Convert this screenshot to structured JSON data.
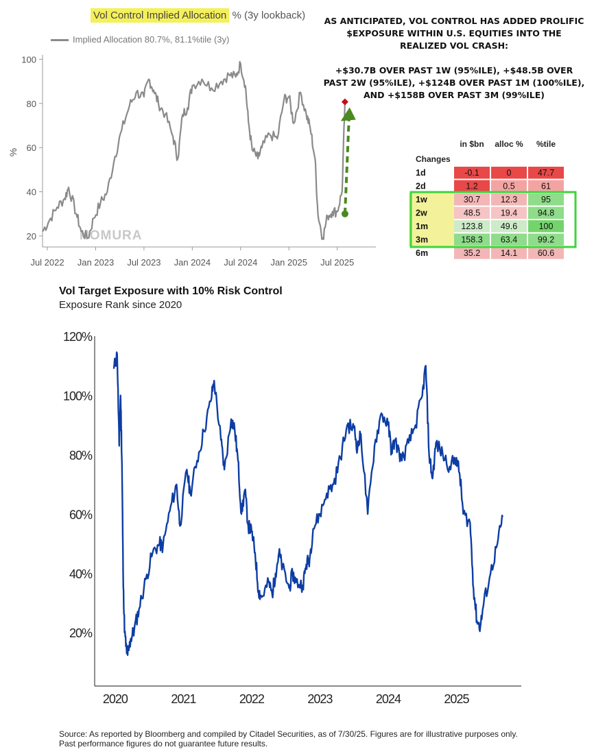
{
  "top": {
    "title_highlight": "Vol Control Implied Allocation",
    "title_rest": " % (3y lookback)",
    "legend": "Implied Allocation 80.7%, 81.1%tile (3y)",
    "watermark": "NOMURA",
    "annotation_line1": "AS ANTICIPATED, VOL CONTROL HAS ADDED PROLIFIC $EXPOSURE WITHIN U.S. EQUITIES INTO THE REALIZED VOL CRASH:",
    "annotation_line2": "+$30.7B OVER PAST 1W (95%ILE), +$48.5B OVER PAST 2W (95%ILE), +$124B OVER PAST 1M (100%ILE), AND +$158B OVER PAST 3M (99%ILE)"
  },
  "table": {
    "corner": "Changes",
    "headers": [
      "in $bn",
      "alloc %",
      "%tile"
    ],
    "rows": [
      {
        "label": "1d",
        "cells": [
          "-0.1",
          "0",
          "47.7"
        ],
        "colors": [
          "#e84848",
          "#e84848",
          "#e84848"
        ],
        "highlight": false
      },
      {
        "label": "2d",
        "cells": [
          "1.2",
          "0.5",
          "61"
        ],
        "colors": [
          "#e84848",
          "#f4a3a3",
          "#f4a3a3"
        ],
        "highlight": false
      },
      {
        "label": "1w",
        "cells": [
          "30.7",
          "12.3",
          "95"
        ],
        "colors": [
          "#f3b6b6",
          "#f3b6b6",
          "#8fdc8a"
        ],
        "highlight": true
      },
      {
        "label": "2w",
        "cells": [
          "48.5",
          "19.4",
          "94.8"
        ],
        "colors": [
          "#f6c4c4",
          "#f6c4c4",
          "#8fdc8a"
        ],
        "highlight": true
      },
      {
        "label": "1m",
        "cells": [
          "123.8",
          "49.6",
          "100"
        ],
        "colors": [
          "#cdebc8",
          "#cdebc8",
          "#74d46c"
        ],
        "highlight": true
      },
      {
        "label": "3m",
        "cells": [
          "158.3",
          "63.4",
          "99.2"
        ],
        "colors": [
          "#8fdc8a",
          "#8fdc8a",
          "#8fdc8a"
        ],
        "highlight": true
      },
      {
        "label": "6m",
        "cells": [
          "35.2",
          "14.1",
          "60.6"
        ],
        "colors": [
          "#f3b6b6",
          "#f3b6b6",
          "#f3b6b6"
        ],
        "highlight": false
      }
    ]
  },
  "bottom": {
    "title": "Vol Target Exposure with 10% Risk Control",
    "subtitle": "Exposure Rank since 2020",
    "source": "Source: As reported by Bloomberg and compiled by Citadel Securities, as of 7/30/25. Figures are for illustrative purposes only. Past performance figures do not guarantee future results."
  },
  "colors": {
    "top_line": "#8a8a8a",
    "bottom_line": "#0d3da3",
    "marker": "#c0101a",
    "arrow": "#4a8a20",
    "highlight_box": "#3fd43a",
    "title_highlight": "#f4f05a"
  },
  "chart_data": [
    {
      "type": "line",
      "title": "Vol Control Implied Allocation % (3y lookback)",
      "xlabel": "",
      "ylabel": "%",
      "x_ticks": [
        "Jul 2022",
        "Jan 2023",
        "Jul 2023",
        "Jan 2024",
        "Jul 2024",
        "Jan 2025",
        "Jul 2025"
      ],
      "y_ticks": [
        20,
        40,
        60,
        80,
        100
      ],
      "xlim": [
        2022.45,
        2025.9
      ],
      "ylim": [
        15,
        102
      ],
      "series": [
        {
          "name": "Implied Allocation 80.7%, 81.1%tile (3y)",
          "x": [
            2022.45,
            2022.52,
            2022.6,
            2022.68,
            2022.72,
            2022.8,
            2022.85,
            2022.92,
            2022.98,
            2023.05,
            2023.12,
            2023.2,
            2023.27,
            2023.35,
            2023.42,
            2023.5,
            2023.55,
            2023.6,
            2023.65,
            2023.72,
            2023.8,
            2023.85,
            2023.9,
            2023.95,
            2024.0,
            2024.1,
            2024.2,
            2024.3,
            2024.38,
            2024.45,
            2024.5,
            2024.55,
            2024.58,
            2024.62,
            2024.68,
            2024.72,
            2024.8,
            2024.88,
            2024.95,
            2025.0,
            2025.05,
            2025.12,
            2025.18,
            2025.22,
            2025.27,
            2025.3,
            2025.35,
            2025.4,
            2025.45,
            2025.5,
            2025.55,
            2025.58
          ],
          "values": [
            22,
            27,
            33,
            37,
            42,
            30,
            22,
            19,
            28,
            35,
            40,
            56,
            68,
            79,
            85,
            83,
            91,
            86,
            80,
            75,
            65,
            55,
            75,
            78,
            88,
            91,
            87,
            90,
            93,
            92,
            98,
            88,
            72,
            59,
            55,
            60,
            66,
            64,
            82,
            83,
            71,
            85,
            75,
            69,
            55,
            30,
            19,
            29,
            31,
            31,
            40,
            80.7
          ]
        }
      ],
      "marker": {
        "x": 2025.58,
        "y": 80.7
      },
      "arrow": {
        "x_from": 2025.58,
        "y_from": 30,
        "x_to": 2025.6,
        "y_to": 77
      }
    },
    {
      "type": "line",
      "title": "Vol Target Exposure with 10% Risk Control",
      "subtitle": "Exposure Rank since 2020",
      "xlabel": "",
      "ylabel": "",
      "x_ticks": [
        "2020",
        "2021",
        "2022",
        "2023",
        "2024",
        "2025"
      ],
      "y_ticks": [
        "20%",
        "40%",
        "60%",
        "80%",
        "100%",
        "120%"
      ],
      "xlim": [
        2019.7,
        2025.95
      ],
      "ylim": [
        0.02,
        1.2
      ],
      "series": [
        {
          "name": "Exposure Rank",
          "x": [
            2019.98,
            2020.03,
            2020.06,
            2020.08,
            2020.1,
            2020.12,
            2020.14,
            2020.17,
            2020.2,
            2020.23,
            2020.28,
            2020.35,
            2020.45,
            2020.55,
            2020.65,
            2020.7,
            2020.8,
            2020.9,
            2020.95,
            2021.05,
            2021.1,
            2021.2,
            2021.3,
            2021.4,
            2021.45,
            2021.55,
            2021.6,
            2021.7,
            2021.75,
            2021.8,
            2021.85,
            2021.9,
            2021.95,
            2022.0,
            2022.05,
            2022.1,
            2022.15,
            2022.25,
            2022.3,
            2022.35,
            2022.4,
            2022.45,
            2022.55,
            2022.6,
            2022.65,
            2022.75,
            2022.8,
            2022.85,
            2022.9,
            2023.0,
            2023.1,
            2023.2,
            2023.3,
            2023.4,
            2023.5,
            2023.55,
            2023.6,
            2023.7,
            2023.8,
            2023.9,
            2024.0,
            2024.05,
            2024.1,
            2024.2,
            2024.3,
            2024.4,
            2024.5,
            2024.55,
            2024.6,
            2024.65,
            2024.7,
            2024.8,
            2024.9,
            2025.0,
            2025.05,
            2025.1,
            2025.2,
            2025.25,
            2025.3,
            2025.35,
            2025.4,
            2025.5,
            2025.6,
            2025.68
          ],
          "values": [
            1.09,
            1.14,
            0.83,
            1.0,
            0.77,
            0.35,
            0.2,
            0.13,
            0.14,
            0.18,
            0.21,
            0.28,
            0.38,
            0.47,
            0.5,
            0.49,
            0.61,
            0.7,
            0.56,
            0.75,
            0.67,
            0.78,
            0.88,
            0.98,
            1.05,
            0.85,
            0.75,
            0.92,
            0.89,
            0.78,
            0.6,
            0.68,
            0.56,
            0.54,
            0.47,
            0.34,
            0.32,
            0.37,
            0.33,
            0.4,
            0.47,
            0.42,
            0.35,
            0.4,
            0.37,
            0.36,
            0.43,
            0.45,
            0.55,
            0.6,
            0.67,
            0.7,
            0.79,
            0.9,
            0.89,
            0.82,
            0.87,
            0.6,
            0.83,
            0.94,
            0.9,
            0.81,
            0.85,
            0.78,
            0.84,
            0.9,
            1.0,
            1.1,
            0.8,
            0.72,
            0.84,
            0.8,
            0.76,
            0.79,
            0.73,
            0.6,
            0.57,
            0.35,
            0.24,
            0.22,
            0.3,
            0.4,
            0.5,
            0.59
          ]
        }
      ]
    }
  ]
}
